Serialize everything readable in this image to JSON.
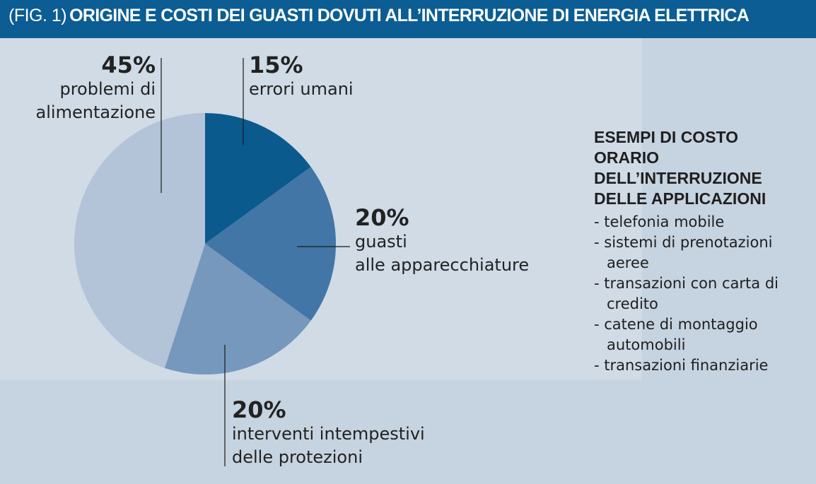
{
  "header": {
    "fig_label": "(FIG. 1)",
    "title": "ORIGINE E COSTI DEI GUASTI DOVUTI ALL’INTERRUZIONE DI ENERGIA ELETTRICA"
  },
  "colors": {
    "header_bg": "#0b5d93",
    "page_bg": "#c6d3e0",
    "panel_bg": "#d0dbe6",
    "slice_errori": "#0b5a8e",
    "slice_guasti": "#4276a6",
    "slice_interventi": "#7698bd",
    "slice_problemi": "#b3c4d8"
  },
  "chart_data": {
    "type": "pie",
    "title": "",
    "slices": [
      {
        "pct_text": "15%",
        "value": 15,
        "label_line1": "errori umani",
        "label_line2": ""
      },
      {
        "pct_text": "20%",
        "value": 20,
        "label_line1": "guasti",
        "label_line2": "alle apparecchiature"
      },
      {
        "pct_text": "20%",
        "value": 20,
        "label_line1": "interventi intempestivi",
        "label_line2": "delle protezioni"
      },
      {
        "pct_text": "45%",
        "value": 45,
        "label_line1": "problemi di",
        "label_line2": "alimentazione"
      }
    ]
  },
  "side": {
    "title_lines": [
      "ESEMPI DI COSTO",
      "ORARIO",
      "DELL’INTERRUZIONE",
      "DELLE APPLICAZIONI"
    ],
    "items": [
      "- telefonia mobile",
      "- sistemi di prenotazioni aeree",
      "- transazioni con carta di credito",
      "- catene di montaggio automobili",
      "- transazioni finanziarie"
    ]
  }
}
